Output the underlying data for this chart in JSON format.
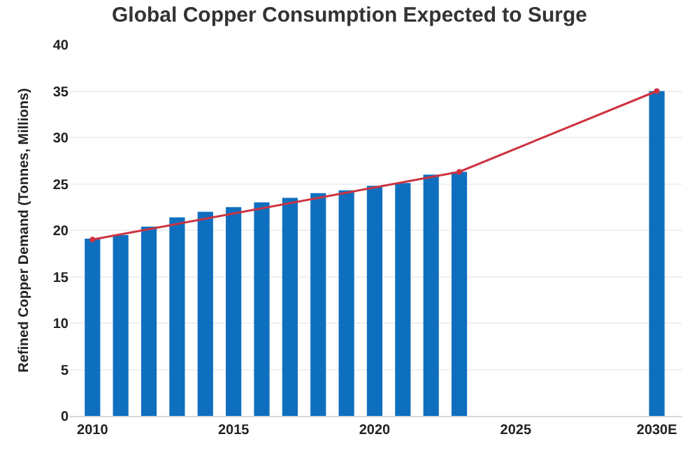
{
  "chart_data": {
    "type": "bar",
    "title": "Global Copper Consumption Expected to Surge",
    "ylabel": "Refined Copper Demand (Tonnes, Millions)",
    "series": [
      {
        "color": "#0f6fbf",
        "x": [
          2010,
          2011,
          2012,
          2013,
          2014,
          2015,
          2016,
          2017,
          2018,
          2019,
          2020,
          2021,
          2022,
          2023,
          2030
        ],
        "values": [
          19.1,
          19.5,
          20.4,
          21.4,
          22.0,
          22.5,
          23.0,
          23.5,
          24.0,
          24.3,
          24.8,
          25.1,
          26.0,
          26.3,
          35.0
        ]
      },
      {
        "type": "line",
        "marker": "circle",
        "color": "#cc3340",
        "x": [
          2010,
          2023,
          2030
        ],
        "values": [
          19.0,
          26.3,
          35.0
        ]
      }
    ],
    "xlim": [
      2009.2,
      2030.9
    ],
    "xticks": [
      2010,
      2015,
      2020,
      2025,
      {
        "value": 2030,
        "label": "2030E"
      }
    ],
    "ylim": [
      0,
      40
    ],
    "yticks": [
      0,
      5,
      10,
      15,
      20,
      25,
      30,
      35,
      40
    ],
    "grid": "y"
  }
}
